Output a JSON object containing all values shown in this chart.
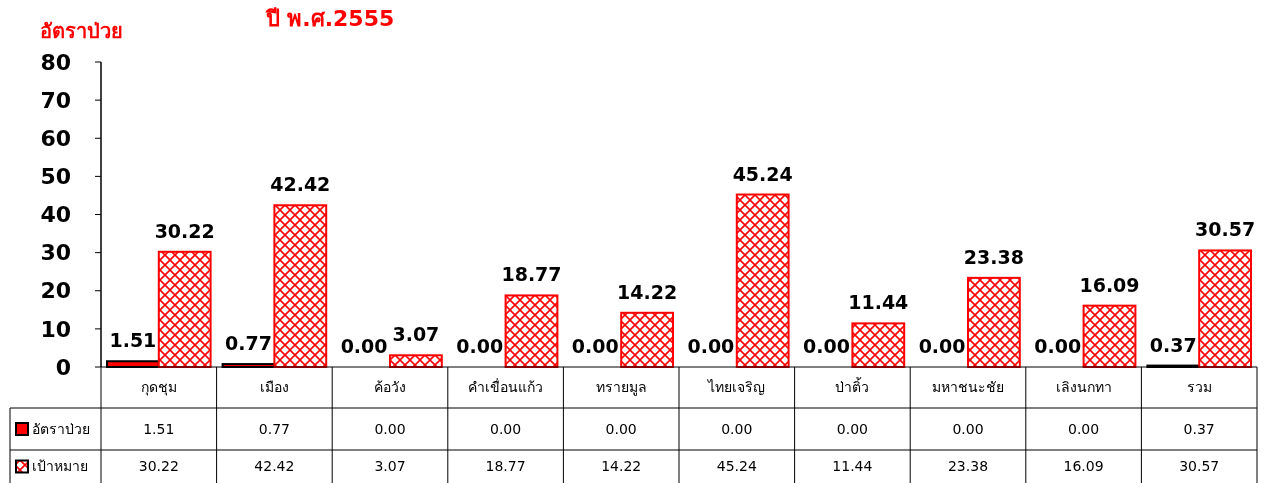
{
  "chart_data": {
    "type": "bar",
    "title": "ปี พ.ศ.2555",
    "ylabel": "อัตราป่วย",
    "categories": [
      "กุดชุม",
      "เมือง",
      "ค้อวัง",
      "คำเขื่อนแก้ว",
      "ทรายมูล",
      "ไทยเจริญ",
      "ป่าติ้ว",
      "มหาชนะชัย",
      "เลิงนกทา",
      "รวม"
    ],
    "series": [
      {
        "name": "อัตราป่วย",
        "color": "#ff0000",
        "values": [
          1.51,
          0.77,
          0,
          0,
          0,
          0,
          0,
          0,
          0,
          0.37
        ],
        "value_labels": [
          "1.51",
          "0.77",
          "0.00",
          "0.00",
          "0.00",
          "0.00",
          "0.00",
          "0.00",
          "0.00",
          "0.37"
        ]
      },
      {
        "name": "เป้าหมาย",
        "color": "#ff0000",
        "values": [
          30.22,
          42.42,
          3.07,
          18.77,
          14.22,
          45.24,
          11.44,
          23.38,
          16.09,
          30.57
        ],
        "value_labels": [
          "30.22",
          "42.42",
          "3.07",
          "18.77",
          "14.22",
          "45.24",
          "11.44",
          "23.38",
          "16.09",
          "30.57"
        ]
      }
    ],
    "ylim": [
      0,
      80
    ],
    "yticks": [
      0,
      10,
      20,
      30,
      40,
      50,
      60,
      70,
      80
    ],
    "grid": false,
    "legend": "bottom"
  }
}
